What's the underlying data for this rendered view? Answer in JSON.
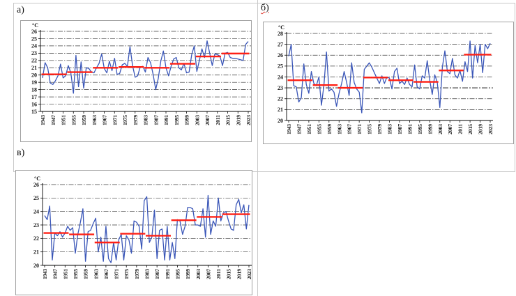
{
  "colors": {
    "series_blue": "#3a56b8",
    "mean_red": "#ff2015",
    "gridline": "#3a3a3a",
    "axis": "#000000",
    "chart_border": "#a0a0a0",
    "table_rule": "#c9c9c9"
  },
  "years_first": 1943,
  "years_last": 2023,
  "x_tick_labels": [
    1943,
    1947,
    1951,
    1955,
    1959,
    1963,
    1967,
    1971,
    1975,
    1979,
    1983,
    1987,
    1991,
    1995,
    1999,
    2003,
    2007,
    2011,
    2015,
    2019,
    2023
  ],
  "chart_data": [
    {
      "key": "a",
      "type": "line",
      "panel_label": "а)",
      "ylabel": "°C",
      "ylim": [
        15,
        26
      ],
      "ytick_step": 1,
      "grid": "dashed-horizontal",
      "legend": "none",
      "series": [
        {
          "name": "annual-mean-temperature",
          "color": "#3a56b8",
          "values": [
            19.6,
            21.7,
            21.0,
            18.9,
            18.7,
            19.2,
            19.9,
            21.5,
            19.6,
            19.9,
            21.3,
            20.3,
            17.5,
            22.7,
            18.4,
            21.8,
            18.2,
            21.0,
            20.9,
            20.4,
            20.3,
            21.0,
            21.6,
            22.9,
            20.9,
            20.3,
            21.9,
            20.6,
            22.3,
            20.1,
            20.2,
            21.4,
            21.6,
            21.2,
            23.9,
            21.3,
            19.7,
            19.9,
            21.1,
            21.2,
            20.4,
            22.4,
            21.7,
            20.1,
            18.0,
            19.5,
            21.9,
            23.3,
            21.0,
            19.9,
            21.2,
            22.2,
            22.4,
            21.0,
            20.7,
            21.6,
            20.3,
            20.4,
            22.8,
            24.0,
            20.5,
            22.0,
            23.6,
            22.4,
            24.7,
            23.0,
            21.3,
            22.9,
            22.8,
            22.6,
            21.3,
            23.0,
            23.1,
            22.4,
            22.3,
            22.3,
            22.2,
            22.1,
            22.0,
            24.2,
            24.6
          ]
        },
        {
          "name": "decade-mean-steps",
          "color": "#ff2015",
          "segments": [
            {
              "from": 1943,
              "to": 1952,
              "value": 20.1
            },
            {
              "from": 1953,
              "to": 1962,
              "value": 20.4
            },
            {
              "from": 1963,
              "to": 1972,
              "value": 21.0
            },
            {
              "from": 1973,
              "to": 1982,
              "value": 21.1
            },
            {
              "from": 1983,
              "to": 1992,
              "value": 21.0
            },
            {
              "from": 1993,
              "to": 2002,
              "value": 21.55
            },
            {
              "from": 2003,
              "to": 2012,
              "value": 22.55
            },
            {
              "from": 2013,
              "to": 2023,
              "value": 22.95
            }
          ]
        }
      ]
    },
    {
      "key": "b",
      "type": "line",
      "panel_label": "б)",
      "ylabel": "°C",
      "ylim": [
        20,
        28
      ],
      "ytick_step": 1,
      "grid": "dashed-horizontal",
      "emphasis_gridline": 23,
      "legend": "none",
      "series": [
        {
          "name": "annual-mean-temperature",
          "color": "#3a56b8",
          "values": [
            25.9,
            27.0,
            23.2,
            23.1,
            21.7,
            22.1,
            25.2,
            23.3,
            22.5,
            24.5,
            23.4,
            23.2,
            24.0,
            21.4,
            23.3,
            26.3,
            22.7,
            22.9,
            22.6,
            21.3,
            22.5,
            23.4,
            24.5,
            23.5,
            22.3,
            25.3,
            23.5,
            22.9,
            22.6,
            20.7,
            24.7,
            25.0,
            25.3,
            24.9,
            24.4,
            23.9,
            23.4,
            24.1,
            23.4,
            24.0,
            23.9,
            22.9,
            24.5,
            24.8,
            23.4,
            23.6,
            23.3,
            23.9,
            23.3,
            23.1,
            25.1,
            23.1,
            22.9,
            24.1,
            23.9,
            25.5,
            23.7,
            22.4,
            24.2,
            23.5,
            21.2,
            24.9,
            26.4,
            24.5,
            24.3,
            25.7,
            24.2,
            23.9,
            24.6,
            23.6,
            25.4,
            24.5,
            27.3,
            23.9,
            26.9,
            25.3,
            27.0,
            24.4,
            27.0,
            26.6,
            27.1
          ]
        },
        {
          "name": "decade-mean-steps",
          "color": "#ff2015",
          "segments": [
            {
              "from": 1943,
              "to": 1952,
              "value": 23.7
            },
            {
              "from": 1953,
              "to": 1962,
              "value": 23.25
            },
            {
              "from": 1963,
              "to": 1972,
              "value": 23.0
            },
            {
              "from": 1973,
              "to": 1982,
              "value": 23.95
            },
            {
              "from": 1983,
              "to": 1992,
              "value": 23.7
            },
            {
              "from": 1993,
              "to": 2002,
              "value": 23.55
            },
            {
              "from": 2003,
              "to": 2012,
              "value": 24.6
            },
            {
              "from": 2013,
              "to": 2023,
              "value": 26.05
            }
          ]
        }
      ]
    },
    {
      "key": "v",
      "type": "line",
      "panel_label": "в)",
      "ylabel": "°C",
      "ylim": [
        20,
        26
      ],
      "ytick_step": 1,
      "grid": "dashed-horizontal",
      "legend": "none",
      "series": [
        {
          "name": "annual-mean-temperature",
          "color": "#3a56b8",
          "values": [
            23.7,
            23.4,
            24.4,
            20.4,
            22.4,
            22.2,
            22.5,
            22.1,
            22.4,
            22.9,
            22.6,
            22.8,
            20.9,
            22.3,
            23.2,
            24.2,
            20.3,
            22.5,
            22.6,
            23.1,
            23.5,
            21.0,
            22.1,
            20.3,
            22.9,
            20.5,
            20.2,
            21.7,
            20.4,
            21.9,
            22.3,
            20.4,
            22.2,
            21.9,
            20.9,
            23.3,
            23.2,
            22.9,
            21.2,
            24.8,
            25.1,
            21.7,
            22.1,
            24.1,
            20.5,
            22.6,
            22.7,
            20.4,
            22.9,
            20.4,
            21.7,
            20.5,
            23.4,
            23.3,
            22.3,
            22.9,
            24.3,
            24.3,
            24.2,
            23.0,
            23.0,
            22.9,
            24.2,
            22.1,
            25.2,
            22.3,
            23.3,
            22.9,
            25.0,
            23.3,
            23.9,
            24.0,
            23.3,
            22.7,
            22.6,
            24.5,
            24.9,
            23.9,
            24.5,
            22.7,
            24.5
          ]
        },
        {
          "name": "decade-mean-steps",
          "color": "#ff2015",
          "segments": [
            {
              "from": 1943,
              "to": 1952,
              "value": 22.4
            },
            {
              "from": 1953,
              "to": 1962,
              "value": 22.3
            },
            {
              "from": 1963,
              "to": 1972,
              "value": 21.7
            },
            {
              "from": 1973,
              "to": 1982,
              "value": 22.35
            },
            {
              "from": 1983,
              "to": 1992,
              "value": 22.2
            },
            {
              "from": 1993,
              "to": 2002,
              "value": 23.35
            },
            {
              "from": 2003,
              "to": 2012,
              "value": 23.6
            },
            {
              "from": 2013,
              "to": 2023,
              "value": 23.8
            }
          ]
        }
      ]
    }
  ]
}
